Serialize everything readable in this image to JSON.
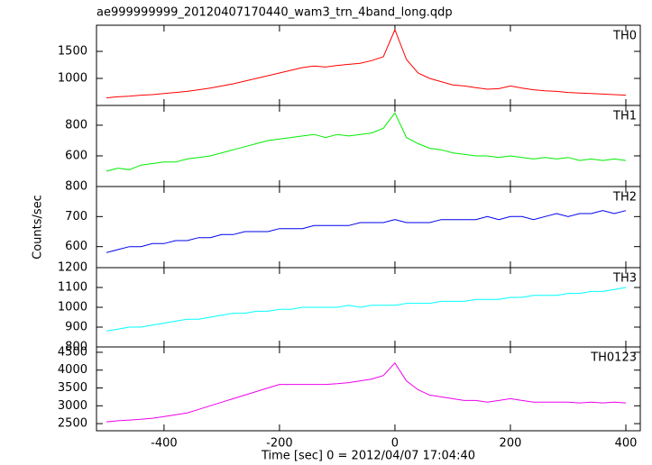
{
  "chart_data": [
    {
      "type": "line",
      "title": "ae999999999_20120407170440_wam3_trn_4band_long.qdp",
      "xlim": [
        -517,
        425
      ],
      "ylim": [
        500,
        1983
      ],
      "yticks": [
        1000,
        1500
      ],
      "x": [
        -500,
        -480,
        -460,
        -440,
        -420,
        -400,
        -380,
        -360,
        -340,
        -320,
        -300,
        -280,
        -260,
        -240,
        -220,
        -200,
        -180,
        -160,
        -140,
        -120,
        -100,
        -80,
        -60,
        -40,
        -20,
        0,
        20,
        40,
        60,
        80,
        100,
        120,
        140,
        160,
        180,
        200,
        220,
        240,
        260,
        280,
        300,
        320,
        340,
        360,
        380,
        400
      ],
      "series": [
        {
          "name": "TH0",
          "color": "#ff0000",
          "values": [
            640,
            660,
            670,
            690,
            700,
            720,
            740,
            760,
            790,
            820,
            860,
            900,
            950,
            1000,
            1050,
            1100,
            1150,
            1200,
            1230,
            1210,
            1240,
            1260,
            1280,
            1330,
            1400,
            1900,
            1350,
            1100,
            1000,
            940,
            880,
            860,
            830,
            800,
            810,
            860,
            820,
            790,
            770,
            760,
            740,
            730,
            720,
            710,
            700,
            690
          ]
        }
      ]
    },
    {
      "type": "line",
      "xlim": [
        -517,
        425
      ],
      "ylim": [
        400,
        929
      ],
      "yticks": [
        600,
        800
      ],
      "x": [
        -500,
        -480,
        -460,
        -440,
        -420,
        -400,
        -380,
        -360,
        -340,
        -320,
        -300,
        -280,
        -260,
        -240,
        -220,
        -200,
        -180,
        -160,
        -140,
        -120,
        -100,
        -80,
        -60,
        -40,
        -20,
        0,
        20,
        40,
        60,
        80,
        100,
        120,
        140,
        160,
        180,
        200,
        220,
        240,
        260,
        280,
        300,
        320,
        340,
        360,
        380,
        400
      ],
      "series": [
        {
          "name": "TH1",
          "color": "#00ee00",
          "values": [
            500,
            520,
            510,
            540,
            550,
            560,
            560,
            580,
            590,
            600,
            620,
            640,
            660,
            680,
            700,
            710,
            720,
            730,
            740,
            720,
            740,
            730,
            740,
            750,
            780,
            880,
            720,
            680,
            650,
            640,
            620,
            610,
            600,
            600,
            590,
            600,
            590,
            580,
            590,
            580,
            590,
            570,
            580,
            570,
            580,
            570
          ]
        }
      ]
    },
    {
      "type": "line",
      "ylabel": "Counts/sec",
      "xlim": [
        -517,
        425
      ],
      "ylim": [
        530,
        800
      ],
      "yticks": [
        600,
        700,
        800
      ],
      "x": [
        -500,
        -480,
        -460,
        -440,
        -420,
        -400,
        -380,
        -360,
        -340,
        -320,
        -300,
        -280,
        -260,
        -240,
        -220,
        -200,
        -180,
        -160,
        -140,
        -120,
        -100,
        -80,
        -60,
        -40,
        -20,
        0,
        20,
        40,
        60,
        80,
        100,
        120,
        140,
        160,
        180,
        200,
        220,
        240,
        260,
        280,
        300,
        320,
        340,
        360,
        380,
        400
      ],
      "series": [
        {
          "name": "TH2",
          "color": "#0000ee",
          "values": [
            580,
            590,
            600,
            600,
            610,
            610,
            620,
            620,
            630,
            630,
            640,
            640,
            650,
            650,
            650,
            660,
            660,
            660,
            670,
            670,
            670,
            670,
            680,
            680,
            680,
            690,
            680,
            680,
            680,
            690,
            690,
            690,
            690,
            700,
            690,
            700,
            700,
            690,
            700,
            710,
            700,
            710,
            710,
            720,
            710,
            720
          ]
        }
      ]
    },
    {
      "type": "line",
      "xlim": [
        -517,
        425
      ],
      "ylim": [
        800,
        1200
      ],
      "yticks": [
        800,
        900,
        1000,
        1100,
        1200
      ],
      "x": [
        -500,
        -480,
        -460,
        -440,
        -420,
        -400,
        -380,
        -360,
        -340,
        -320,
        -300,
        -280,
        -260,
        -240,
        -220,
        -200,
        -180,
        -160,
        -140,
        -120,
        -100,
        -80,
        -60,
        -40,
        -20,
        0,
        20,
        40,
        60,
        80,
        100,
        120,
        140,
        160,
        180,
        200,
        220,
        240,
        260,
        280,
        300,
        320,
        340,
        360,
        380,
        400
      ],
      "series": [
        {
          "name": "TH3",
          "color": "#00ffff",
          "values": [
            880,
            890,
            900,
            900,
            910,
            920,
            930,
            940,
            940,
            950,
            960,
            970,
            970,
            980,
            980,
            990,
            990,
            1000,
            1000,
            1000,
            1000,
            1010,
            1000,
            1010,
            1010,
            1010,
            1020,
            1020,
            1020,
            1030,
            1030,
            1030,
            1040,
            1040,
            1040,
            1050,
            1050,
            1060,
            1060,
            1060,
            1070,
            1070,
            1080,
            1080,
            1090,
            1100
          ]
        }
      ]
    },
    {
      "type": "line",
      "xlabel": "Time [sec] 0 = 2012/04/07 17:04:40",
      "xlim": [
        -517,
        425
      ],
      "xticks": [
        -400,
        -200,
        0,
        200,
        400
      ],
      "ylim": [
        2300,
        4650
      ],
      "yticks": [
        2500,
        3000,
        3500,
        4000,
        4500
      ],
      "x": [
        -500,
        -480,
        -460,
        -440,
        -420,
        -400,
        -380,
        -360,
        -340,
        -320,
        -300,
        -280,
        -260,
        -240,
        -220,
        -200,
        -180,
        -160,
        -140,
        -120,
        -100,
        -80,
        -60,
        -40,
        -20,
        0,
        20,
        40,
        60,
        80,
        100,
        120,
        140,
        160,
        180,
        200,
        220,
        240,
        260,
        280,
        300,
        320,
        340,
        360,
        380,
        400
      ],
      "series": [
        {
          "name": "TH0123",
          "color": "#ee00ee",
          "values": [
            2550,
            2580,
            2600,
            2620,
            2650,
            2700,
            2750,
            2800,
            2900,
            3000,
            3100,
            3200,
            3300,
            3400,
            3500,
            3600,
            3600,
            3600,
            3600,
            3600,
            3620,
            3650,
            3700,
            3750,
            3850,
            4200,
            3700,
            3450,
            3300,
            3250,
            3200,
            3150,
            3150,
            3100,
            3150,
            3200,
            3150,
            3100,
            3100,
            3100,
            3100,
            3080,
            3100,
            3080,
            3100,
            3080
          ]
        }
      ]
    }
  ]
}
